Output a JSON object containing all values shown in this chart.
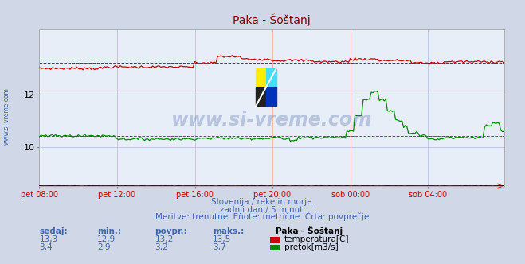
{
  "title": "Paka - Šoštanj",
  "bg_color": "#d0d8e8",
  "plot_bg_color": "#e8eef8",
  "grid_color": "#ffaaaa",
  "title_color": "#800000",
  "axis_label_color": "#cc0000",
  "text_color": "#4466aa",
  "watermark_text": "www.si-vreme.com",
  "subtitle_lines": [
    "Slovenija / reke in morje.",
    "zadnji dan / 5 minut.",
    "Meritve: trenutne  Enote: metrične  Črta: povprečje"
  ],
  "stats_headers": [
    "sedaj:",
    "min.:",
    "povpr.:",
    "maks.:"
  ],
  "stats_label": "Paka - Šoštanj",
  "stats_temp": [
    "13,3",
    "12,9",
    "13,2",
    "13,5"
  ],
  "stats_flow": [
    "3,4",
    "2,9",
    "3,2",
    "3,7"
  ],
  "legend_temp": "temperatura[C]",
  "legend_flow": "pretok[m3/s]",
  "temp_color": "#cc0000",
  "flow_color": "#008800",
  "height_color": "#0000cc",
  "xlim": [
    0,
    287
  ],
  "ylim_left": [
    8.5,
    14.5
  ],
  "ylim_right": [
    0.0,
    10.0
  ],
  "yticks_left": [
    10,
    12
  ],
  "xtick_labels": [
    "pet 08:00",
    "pet 12:00",
    "pet 16:00",
    "pet 20:00",
    "sob 00:00",
    "sob 04:00"
  ],
  "xtick_positions": [
    0,
    48,
    96,
    144,
    192,
    240
  ],
  "temp_avg": 13.2,
  "flow_avg": 3.2,
  "height_avg": 0.0,
  "n_points": 288
}
